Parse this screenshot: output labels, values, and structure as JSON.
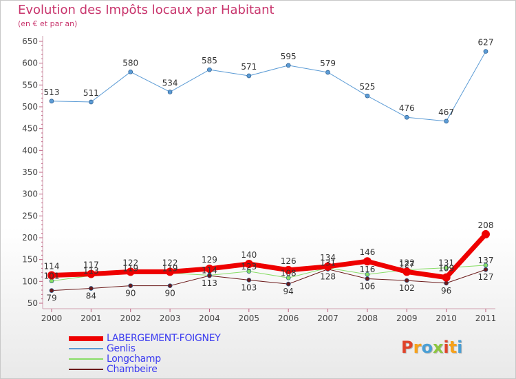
{
  "header": {
    "title": "Evolution des Impôts locaux par Habitant",
    "subtitle": "(en € et par an)"
  },
  "logo": {
    "text": "Proxiti",
    "colors": [
      "#e0432a",
      "#f7a21b",
      "#4a9fd5",
      "#8dc63f"
    ]
  },
  "chart_data": {
    "type": "line",
    "title": "Evolution des Impôts locaux par Habitant",
    "subtitle": "(en € et par an)",
    "categories": [
      "2000",
      "2001",
      "2002",
      "2003",
      "2004",
      "2005",
      "2006",
      "2007",
      "2008",
      "2009",
      "2010",
      "2011"
    ],
    "ylim": [
      50,
      650
    ],
    "yticks": [
      50,
      100,
      150,
      200,
      250,
      300,
      350,
      400,
      450,
      500,
      550,
      600,
      650
    ],
    "grid": false,
    "legend_position": "bottom-left",
    "series": [
      {
        "name": "LABERGEMENT-FOIGNEY",
        "color": "#ee0000",
        "width": 7,
        "values": [
          114,
          117,
          122,
          122,
          129,
          140,
          126,
          134,
          146,
          122,
          109,
          208
        ]
      },
      {
        "name": "Genlis",
        "color": "#5b9bd5",
        "width": 1,
        "values": [
          513,
          511,
          580,
          534,
          585,
          571,
          595,
          579,
          525,
          476,
          467,
          627
        ]
      },
      {
        "name": "Longchamp",
        "color": "#88dd66",
        "width": 1,
        "values": [
          101,
          113,
          119,
          119,
          114,
          123,
          108,
          131,
          116,
          127,
          131,
          137
        ]
      },
      {
        "name": "Chambeire",
        "color": "#6b1a1a",
        "width": 1,
        "values": [
          79,
          84,
          90,
          90,
          113,
          103,
          94,
          128,
          106,
          102,
          96,
          127
        ]
      }
    ]
  }
}
